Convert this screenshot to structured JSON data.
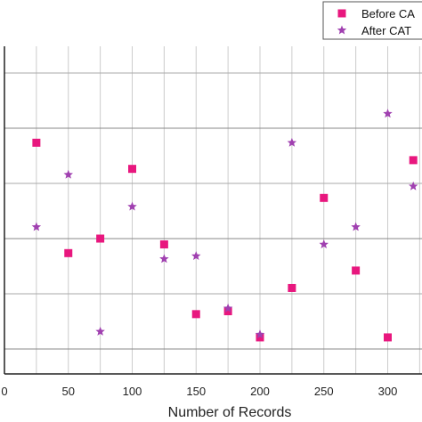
{
  "chart_data": {
    "type": "scatter",
    "title": "",
    "xlabel": "Number of Records",
    "ylabel": "",
    "xlim": [
      0,
      320
    ],
    "ylim": [
      0,
      1
    ],
    "x_ticks": [
      0,
      50,
      100,
      150,
      200,
      250,
      300
    ],
    "grid": true,
    "legend_position": "top-right",
    "series": [
      {
        "name": "Before CA",
        "marker": "square",
        "color": "#e8177e",
        "points": [
          [
            25,
            0.71
          ],
          [
            50,
            0.33
          ],
          [
            75,
            0.38
          ],
          [
            100,
            0.62
          ],
          [
            125,
            0.36
          ],
          [
            150,
            0.12
          ],
          [
            175,
            0.13
          ],
          [
            200,
            0.04
          ],
          [
            225,
            0.21
          ],
          [
            250,
            0.52
          ],
          [
            275,
            0.27
          ],
          [
            300,
            0.04
          ],
          [
            320,
            0.65
          ]
        ]
      },
      {
        "name": "After CAT",
        "marker": "star",
        "color": "#a040b0",
        "points": [
          [
            25,
            0.42
          ],
          [
            50,
            0.6
          ],
          [
            75,
            0.06
          ],
          [
            100,
            0.49
          ],
          [
            125,
            0.31
          ],
          [
            150,
            0.32
          ],
          [
            175,
            0.14
          ],
          [
            200,
            0.05
          ],
          [
            225,
            0.71
          ],
          [
            250,
            0.36
          ],
          [
            275,
            0.42
          ],
          [
            300,
            0.81
          ],
          [
            320,
            0.56
          ]
        ]
      }
    ]
  }
}
